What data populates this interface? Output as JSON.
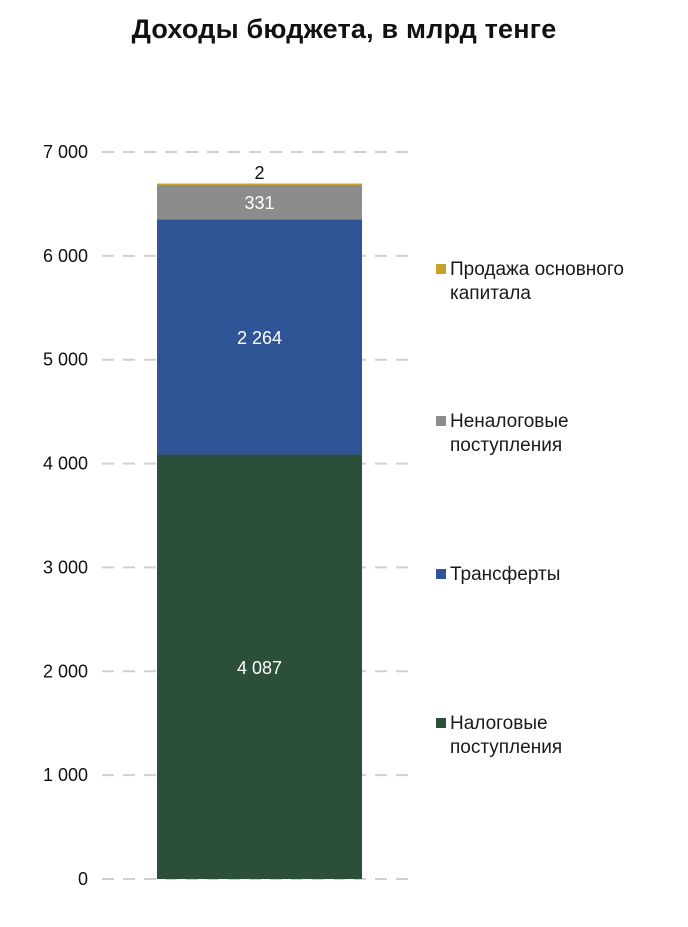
{
  "chart_data": {
    "type": "bar",
    "stacked": true,
    "title": "Доходы бюджета, в млрд тенге",
    "xlabel": "",
    "ylabel": "",
    "ylim": [
      0,
      7000
    ],
    "yticks": [
      0,
      1000,
      2000,
      3000,
      4000,
      5000,
      6000,
      7000
    ],
    "ytick_labels": [
      "0",
      "1 000",
      "2 000",
      "3 000",
      "4 000",
      "5 000",
      "6 000",
      "7 000"
    ],
    "grid": true,
    "legend_position": "right",
    "series": [
      {
        "name": "Налоговые поступления",
        "value": 4087,
        "label": "4 087",
        "color": "#2b4f38",
        "label_color": "#ffffff",
        "legend_lines": [
          "Налоговые",
          "поступления"
        ]
      },
      {
        "name": "Трансферты",
        "value": 2264,
        "label": "2 264",
        "color": "#2f5597",
        "label_color": "#ffffff",
        "legend_lines": [
          "Трансферты"
        ]
      },
      {
        "name": "Неналоговые поступления",
        "value": 331,
        "label": "331",
        "color": "#8c8c8c",
        "label_color": "#ffffff",
        "legend_lines": [
          "Неналоговые",
          "поступления"
        ]
      },
      {
        "name": "Продажа основного капитала",
        "value": 2,
        "label": "2",
        "color": "#c9a227",
        "label_color": "#111111",
        "legend_lines": [
          "Продажа основного",
          "капитала"
        ]
      }
    ]
  }
}
